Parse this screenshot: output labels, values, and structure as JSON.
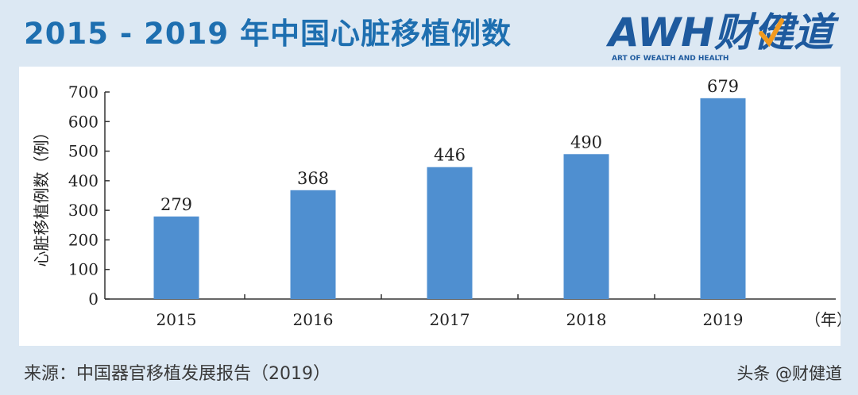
{
  "header": {
    "title": "2015 - 2019 年中国心脏移植例数"
  },
  "logo": {
    "text": "AWH财健道",
    "tagline": "ART OF WEALTH AND HEALTH",
    "colors": {
      "primary": "#1e5a9e",
      "accent": "#f29a1f"
    }
  },
  "chart_data": {
    "type": "bar",
    "categories": [
      "2015",
      "2016",
      "2017",
      "2018",
      "2019"
    ],
    "values": [
      279,
      368,
      446,
      490,
      679
    ],
    "ylabel": "心脏移植例数（例）",
    "xlabel": "（年）",
    "ylim": [
      0,
      700
    ],
    "yticks": [
      0,
      100,
      200,
      300,
      400,
      500,
      600,
      700
    ],
    "bar_color": "#4f8fd0",
    "grid": false,
    "legend": "none",
    "data_labels": true
  },
  "footer": {
    "source": "来源：中国器官移植发展报告（2019）",
    "watermark": "头条 @财健道"
  }
}
